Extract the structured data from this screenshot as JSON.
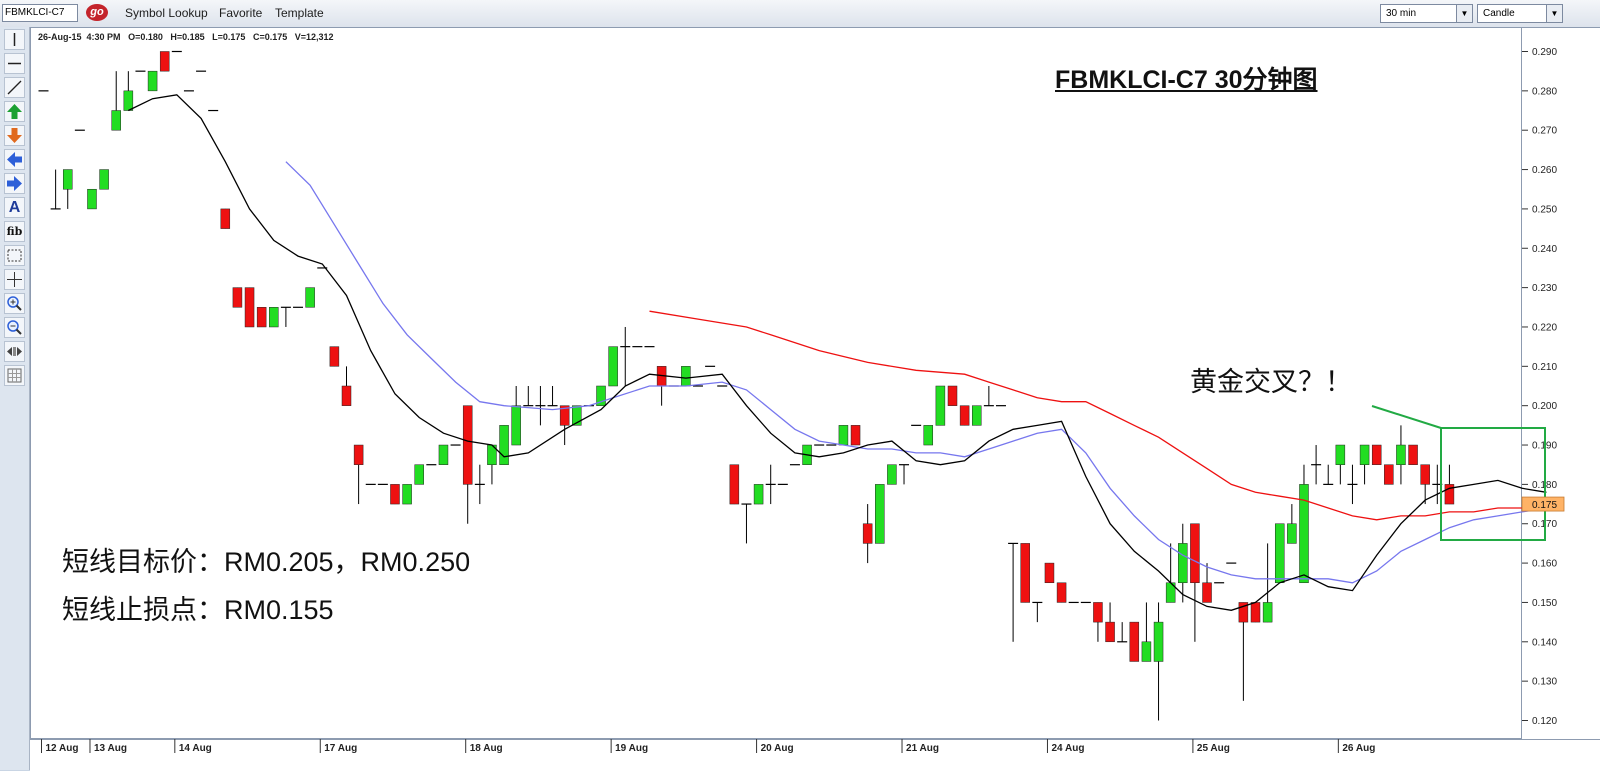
{
  "window": {
    "symbol": "FBMKLCI-C7",
    "go_label": "go",
    "menu": [
      "Symbol Lookup",
      "Favorite",
      "Template"
    ],
    "interval": "30 min",
    "chart_style": "Candle"
  },
  "toolbox": {
    "icons": [
      "vertical-line-icon",
      "horizontal-line-icon",
      "trend-line-icon",
      "up-arrow-icon",
      "down-arrow-icon",
      "left-arrow-icon",
      "right-arrow-icon",
      "text-icon",
      "fibonacci-icon",
      "select-rectangle-icon",
      "crosshair-icon",
      "zoom-in-icon",
      "zoom-out-icon",
      "scroll-icon",
      "grid-icon"
    ],
    "text_tool_label": "A",
    "fib_tool_label": "fib"
  },
  "info_bar": {
    "date": "26-Aug-15",
    "time": "4:30 PM",
    "open": "O=0.180",
    "high": "H=0.185",
    "low": "L=0.175",
    "close": "C=0.175",
    "volume": "V=12,312"
  },
  "annotations": {
    "title": "FBMKLCI-C7 30分钟图",
    "target": "短线目标价：RM0.205，RM0.250",
    "stop": "短线止损点：RM0.155",
    "golden_cross": "黄金交叉？！"
  },
  "colors": {
    "up": "#22dd22",
    "down": "#ee1111",
    "ma_short": "#000000",
    "ma_mid": "#7777ee",
    "ma_long": "#ee1111",
    "highlight_box": "#22aa44",
    "last_price_bg": "#ffb366"
  },
  "chart_data": {
    "type": "candlestick",
    "interval": "30 min",
    "y_range": [
      0.115,
      0.295
    ],
    "y_ticks": [
      "0.120",
      "0.130",
      "0.140",
      "0.150",
      "0.160",
      "0.170",
      "0.180",
      "0.190",
      "0.200",
      "0.210",
      "0.220",
      "0.230",
      "0.240",
      "0.250",
      "0.260",
      "0.270",
      "0.280",
      "0.290"
    ],
    "last_price": "0.175",
    "date_labels": [
      "12 Aug",
      "13 Aug",
      "14 Aug",
      "17 Aug",
      "18 Aug",
      "19 Aug",
      "20 Aug",
      "21 Aug",
      "24 Aug",
      "25 Aug",
      "26 Aug"
    ],
    "date_label_bar_index": [
      0,
      4,
      11,
      23,
      35,
      47,
      59,
      71,
      83,
      95,
      107
    ],
    "candles": [
      [
        0.28,
        0.28,
        0.28,
        0.28
      ],
      [
        0.25,
        0.26,
        0.25,
        0.25
      ],
      [
        0.255,
        0.26,
        0.25,
        0.26
      ],
      [
        0.27,
        0.27,
        0.27,
        0.27
      ],
      [
        0.25,
        0.255,
        0.25,
        0.255
      ],
      [
        0.255,
        0.26,
        0.255,
        0.26
      ],
      [
        0.27,
        0.285,
        0.27,
        0.275
      ],
      [
        0.275,
        0.285,
        0.275,
        0.28
      ],
      [
        0.285,
        0.285,
        0.285,
        0.285
      ],
      [
        0.28,
        0.285,
        0.28,
        0.285
      ],
      [
        0.29,
        0.29,
        0.285,
        0.285
      ],
      [
        0.29,
        0.29,
        0.29,
        0.29
      ],
      [
        0.28,
        0.28,
        0.28,
        0.28
      ],
      [
        0.285,
        0.285,
        0.285,
        0.285
      ],
      [
        0.275,
        0.275,
        0.275,
        0.275
      ],
      [
        0.25,
        0.25,
        0.245,
        0.245
      ],
      [
        0.23,
        0.23,
        0.225,
        0.225
      ],
      [
        0.23,
        0.23,
        0.22,
        0.22
      ],
      [
        0.225,
        0.225,
        0.22,
        0.22
      ],
      [
        0.22,
        0.225,
        0.22,
        0.225
      ],
      [
        0.225,
        0.225,
        0.22,
        0.225
      ],
      [
        0.225,
        0.225,
        0.225,
        0.225
      ],
      [
        0.225,
        0.23,
        0.225,
        0.23
      ],
      [
        0.235,
        0.235,
        0.235,
        0.235
      ],
      [
        0.215,
        0.215,
        0.21,
        0.21
      ],
      [
        0.205,
        0.21,
        0.2,
        0.2
      ],
      [
        0.19,
        0.19,
        0.175,
        0.185
      ],
      [
        0.18,
        0.18,
        0.18,
        0.18
      ],
      [
        0.18,
        0.18,
        0.18,
        0.18
      ],
      [
        0.18,
        0.18,
        0.175,
        0.175
      ],
      [
        0.175,
        0.18,
        0.175,
        0.18
      ],
      [
        0.18,
        0.185,
        0.18,
        0.185
      ],
      [
        0.185,
        0.185,
        0.185,
        0.185
      ],
      [
        0.185,
        0.19,
        0.185,
        0.19
      ],
      [
        0.19,
        0.19,
        0.19,
        0.19
      ],
      [
        0.2,
        0.2,
        0.17,
        0.18
      ],
      [
        0.18,
        0.185,
        0.175,
        0.18
      ],
      [
        0.185,
        0.19,
        0.18,
        0.19
      ],
      [
        0.185,
        0.195,
        0.185,
        0.195
      ],
      [
        0.19,
        0.205,
        0.19,
        0.2
      ],
      [
        0.2,
        0.205,
        0.2,
        0.2
      ],
      [
        0.2,
        0.205,
        0.195,
        0.2
      ],
      [
        0.2,
        0.205,
        0.2,
        0.2
      ],
      [
        0.2,
        0.2,
        0.19,
        0.195
      ],
      [
        0.195,
        0.2,
        0.195,
        0.2
      ],
      [
        0.2,
        0.2,
        0.2,
        0.2
      ],
      [
        0.2,
        0.205,
        0.2,
        0.205
      ],
      [
        0.205,
        0.215,
        0.205,
        0.215
      ],
      [
        0.215,
        0.22,
        0.205,
        0.215
      ],
      [
        0.215,
        0.215,
        0.215,
        0.215
      ],
      [
        0.215,
        0.215,
        0.215,
        0.215
      ],
      [
        0.21,
        0.21,
        0.2,
        0.205
      ],
      [
        0.205,
        0.205,
        0.205,
        0.205
      ],
      [
        0.205,
        0.21,
        0.205,
        0.21
      ],
      [
        0.205,
        0.205,
        0.205,
        0.205
      ],
      [
        0.21,
        0.21,
        0.21,
        0.21
      ],
      [
        0.205,
        0.205,
        0.205,
        0.205
      ],
      [
        0.185,
        0.185,
        0.175,
        0.175
      ],
      [
        0.175,
        0.175,
        0.165,
        0.175
      ],
      [
        0.175,
        0.18,
        0.175,
        0.18
      ],
      [
        0.18,
        0.185,
        0.175,
        0.18
      ],
      [
        0.18,
        0.18,
        0.18,
        0.18
      ],
      [
        0.185,
        0.185,
        0.185,
        0.185
      ],
      [
        0.185,
        0.19,
        0.185,
        0.19
      ],
      [
        0.19,
        0.19,
        0.19,
        0.19
      ],
      [
        0.19,
        0.19,
        0.19,
        0.19
      ],
      [
        0.19,
        0.195,
        0.19,
        0.195
      ],
      [
        0.195,
        0.195,
        0.19,
        0.19
      ],
      [
        0.17,
        0.175,
        0.16,
        0.165
      ],
      [
        0.165,
        0.18,
        0.165,
        0.18
      ],
      [
        0.18,
        0.185,
        0.18,
        0.185
      ],
      [
        0.185,
        0.185,
        0.18,
        0.185
      ],
      [
        0.195,
        0.195,
        0.195,
        0.195
      ],
      [
        0.19,
        0.195,
        0.19,
        0.195
      ],
      [
        0.195,
        0.205,
        0.195,
        0.205
      ],
      [
        0.205,
        0.205,
        0.2,
        0.2
      ],
      [
        0.2,
        0.2,
        0.195,
        0.195
      ],
      [
        0.195,
        0.2,
        0.195,
        0.2
      ],
      [
        0.2,
        0.205,
        0.2,
        0.2
      ],
      [
        0.2,
        0.2,
        0.2,
        0.2
      ],
      [
        0.165,
        0.165,
        0.14,
        0.165
      ],
      [
        0.165,
        0.165,
        0.15,
        0.15
      ],
      [
        0.15,
        0.15,
        0.145,
        0.15
      ],
      [
        0.16,
        0.16,
        0.155,
        0.155
      ],
      [
        0.155,
        0.155,
        0.15,
        0.15
      ],
      [
        0.15,
        0.15,
        0.15,
        0.15
      ],
      [
        0.15,
        0.15,
        0.15,
        0.15
      ],
      [
        0.15,
        0.15,
        0.14,
        0.145
      ],
      [
        0.145,
        0.15,
        0.14,
        0.14
      ],
      [
        0.14,
        0.145,
        0.14,
        0.14
      ],
      [
        0.145,
        0.145,
        0.135,
        0.135
      ],
      [
        0.135,
        0.15,
        0.135,
        0.14
      ],
      [
        0.135,
        0.15,
        0.12,
        0.145
      ],
      [
        0.15,
        0.165,
        0.15,
        0.155
      ],
      [
        0.155,
        0.17,
        0.15,
        0.165
      ],
      [
        0.17,
        0.17,
        0.14,
        0.155
      ],
      [
        0.155,
        0.16,
        0.15,
        0.15
      ],
      [
        0.155,
        0.155,
        0.155,
        0.155
      ],
      [
        0.16,
        0.16,
        0.16,
        0.16
      ],
      [
        0.15,
        0.15,
        0.125,
        0.145
      ],
      [
        0.15,
        0.15,
        0.145,
        0.145
      ],
      [
        0.145,
        0.165,
        0.145,
        0.15
      ],
      [
        0.155,
        0.17,
        0.155,
        0.17
      ],
      [
        0.165,
        0.175,
        0.165,
        0.17
      ],
      [
        0.155,
        0.185,
        0.155,
        0.18
      ],
      [
        0.185,
        0.19,
        0.18,
        0.185
      ],
      [
        0.18,
        0.185,
        0.18,
        0.18
      ],
      [
        0.185,
        0.19,
        0.18,
        0.19
      ],
      [
        0.18,
        0.185,
        0.175,
        0.18
      ],
      [
        0.185,
        0.19,
        0.18,
        0.19
      ],
      [
        0.19,
        0.19,
        0.185,
        0.185
      ],
      [
        0.185,
        0.185,
        0.18,
        0.18
      ],
      [
        0.185,
        0.195,
        0.18,
        0.19
      ],
      [
        0.19,
        0.19,
        0.185,
        0.185
      ],
      [
        0.185,
        0.185,
        0.175,
        0.18
      ],
      [
        0.18,
        0.185,
        0.175,
        0.18
      ],
      [
        0.18,
        0.185,
        0.175,
        0.175
      ]
    ],
    "ma_short": [
      [
        7,
        0.275
      ],
      [
        9,
        0.278
      ],
      [
        11,
        0.279
      ],
      [
        13,
        0.273
      ],
      [
        15,
        0.262
      ],
      [
        17,
        0.25
      ],
      [
        19,
        0.242
      ],
      [
        21,
        0.238
      ],
      [
        23,
        0.236
      ],
      [
        25,
        0.228
      ],
      [
        27,
        0.214
      ],
      [
        29,
        0.203
      ],
      [
        31,
        0.197
      ],
      [
        33,
        0.193
      ],
      [
        35,
        0.191
      ],
      [
        37,
        0.19
      ],
      [
        38,
        0.187
      ],
      [
        40,
        0.188
      ],
      [
        43,
        0.194
      ],
      [
        46,
        0.199
      ],
      [
        48,
        0.205
      ],
      [
        50,
        0.208
      ],
      [
        53,
        0.207
      ],
      [
        56,
        0.208
      ],
      [
        58,
        0.2
      ],
      [
        60,
        0.193
      ],
      [
        62,
        0.188
      ],
      [
        64,
        0.187
      ],
      [
        66,
        0.188
      ],
      [
        68,
        0.19
      ],
      [
        70,
        0.191
      ],
      [
        72,
        0.186
      ],
      [
        74,
        0.185
      ],
      [
        76,
        0.186
      ],
      [
        78,
        0.191
      ],
      [
        80,
        0.194
      ],
      [
        82,
        0.195
      ],
      [
        84,
        0.196
      ],
      [
        86,
        0.182
      ],
      [
        88,
        0.17
      ],
      [
        90,
        0.163
      ],
      [
        92,
        0.158
      ],
      [
        94,
        0.152
      ],
      [
        96,
        0.149
      ],
      [
        98,
        0.148
      ],
      [
        100,
        0.15
      ],
      [
        102,
        0.155
      ],
      [
        104,
        0.157
      ],
      [
        106,
        0.154
      ],
      [
        108,
        0.153
      ],
      [
        110,
        0.162
      ],
      [
        112,
        0.17
      ],
      [
        114,
        0.176
      ],
      [
        116,
        0.179
      ],
      [
        118,
        0.18
      ],
      [
        120,
        0.181
      ],
      [
        122,
        0.179
      ],
      [
        124,
        0.178
      ]
    ],
    "ma_mid": [
      [
        20,
        0.262
      ],
      [
        22,
        0.256
      ],
      [
        24,
        0.246
      ],
      [
        26,
        0.236
      ],
      [
        28,
        0.226
      ],
      [
        30,
        0.218
      ],
      [
        32,
        0.212
      ],
      [
        34,
        0.206
      ],
      [
        36,
        0.201
      ],
      [
        38,
        0.2
      ],
      [
        42,
        0.199
      ],
      [
        45,
        0.2
      ],
      [
        47,
        0.202
      ],
      [
        50,
        0.205
      ],
      [
        53,
        0.205
      ],
      [
        56,
        0.206
      ],
      [
        58,
        0.204
      ],
      [
        60,
        0.199
      ],
      [
        62,
        0.194
      ],
      [
        64,
        0.191
      ],
      [
        66,
        0.19
      ],
      [
        68,
        0.189
      ],
      [
        70,
        0.189
      ],
      [
        72,
        0.188
      ],
      [
        74,
        0.188
      ],
      [
        76,
        0.187
      ],
      [
        78,
        0.189
      ],
      [
        80,
        0.191
      ],
      [
        82,
        0.193
      ],
      [
        84,
        0.194
      ],
      [
        86,
        0.188
      ],
      [
        88,
        0.179
      ],
      [
        90,
        0.172
      ],
      [
        92,
        0.166
      ],
      [
        94,
        0.162
      ],
      [
        96,
        0.159
      ],
      [
        98,
        0.157
      ],
      [
        100,
        0.156
      ],
      [
        102,
        0.156
      ],
      [
        104,
        0.156
      ],
      [
        106,
        0.156
      ],
      [
        108,
        0.155
      ],
      [
        110,
        0.158
      ],
      [
        112,
        0.163
      ],
      [
        114,
        0.166
      ],
      [
        116,
        0.169
      ],
      [
        118,
        0.171
      ],
      [
        120,
        0.172
      ],
      [
        122,
        0.173
      ],
      [
        124,
        0.174
      ]
    ],
    "ma_long": [
      [
        50,
        0.224
      ],
      [
        54,
        0.222
      ],
      [
        58,
        0.22
      ],
      [
        60,
        0.218
      ],
      [
        64,
        0.214
      ],
      [
        68,
        0.211
      ],
      [
        72,
        0.209
      ],
      [
        76,
        0.208
      ],
      [
        78,
        0.206
      ],
      [
        80,
        0.204
      ],
      [
        82,
        0.202
      ],
      [
        84,
        0.201
      ],
      [
        86,
        0.201
      ],
      [
        88,
        0.198
      ],
      [
        90,
        0.195
      ],
      [
        92,
        0.192
      ],
      [
        94,
        0.188
      ],
      [
        96,
        0.184
      ],
      [
        98,
        0.18
      ],
      [
        100,
        0.178
      ],
      [
        102,
        0.177
      ],
      [
        104,
        0.176
      ],
      [
        106,
        0.174
      ],
      [
        108,
        0.172
      ],
      [
        110,
        0.171
      ],
      [
        112,
        0.172
      ],
      [
        114,
        0.172
      ],
      [
        116,
        0.173
      ],
      [
        118,
        0.173
      ],
      [
        120,
        0.174
      ],
      [
        122,
        0.174
      ],
      [
        124,
        0.174
      ]
    ]
  }
}
